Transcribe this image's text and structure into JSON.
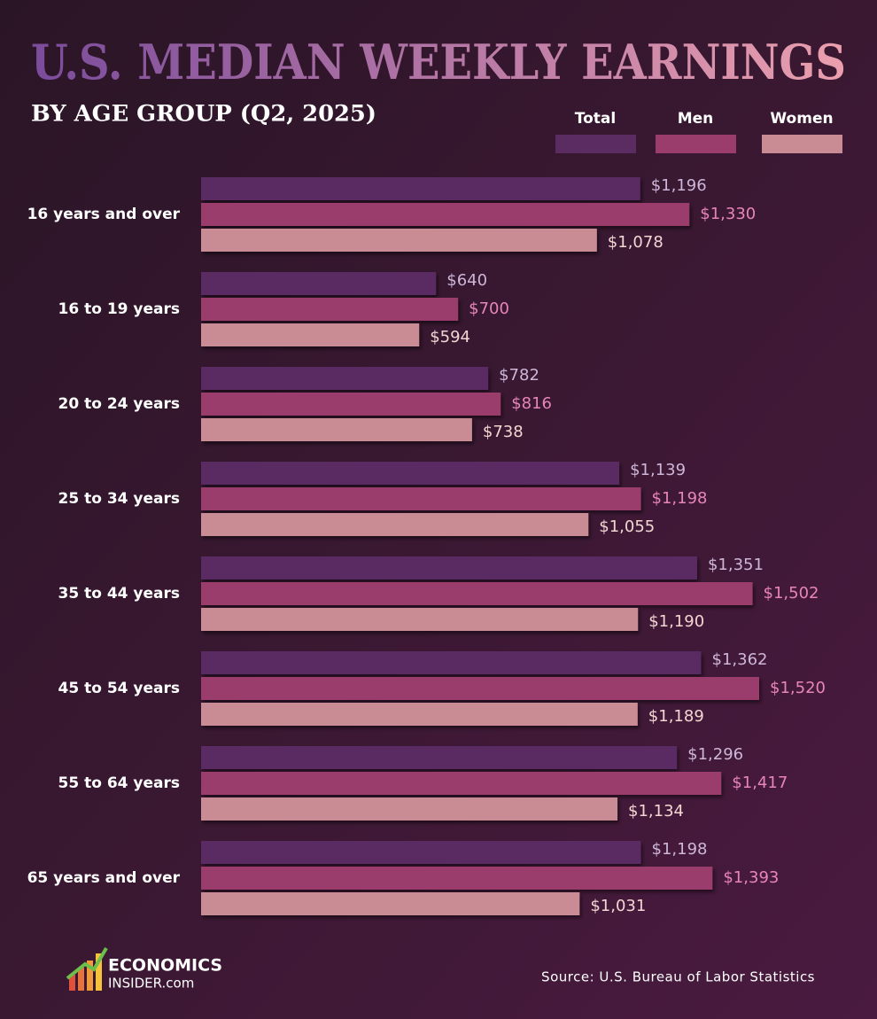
{
  "chart_data": {
    "type": "bar",
    "orientation": "horizontal",
    "title": "U.S. MEDIAN WEEKLY EARNINGS",
    "subtitle": "BY AGE GROUP (Q2, 2025)",
    "categories": [
      "16 years and over",
      "16 to 19 years",
      "20 to 24 years",
      "25 to 34 years",
      "35 to 44 years",
      "45 to 54 years",
      "55 to 64 years",
      "65 years and over"
    ],
    "series": [
      {
        "name": "Total",
        "color": "#5a2c62",
        "label_color": "#cdb6d8",
        "values": [
          1196,
          640,
          782,
          1139,
          1351,
          1362,
          1296,
          1198
        ],
        "value_labels": [
          "$1,196",
          "$640",
          "$782",
          "$1,139",
          "$1,351",
          "$1,362",
          "$1,296",
          "$1,198"
        ]
      },
      {
        "name": "Men",
        "color": "#9a3d6c",
        "label_color": "#e785b8",
        "values": [
          1330,
          700,
          816,
          1198,
          1502,
          1520,
          1417,
          1393
        ],
        "value_labels": [
          "$1,330",
          "$700",
          "$816",
          "$1,198",
          "$1,502",
          "$1,520",
          "$1,417",
          "$1,393"
        ]
      },
      {
        "name": "Women",
        "color": "#c98b94",
        "label_color": "#f2d6d2",
        "values": [
          1078,
          594,
          738,
          1055,
          1190,
          1189,
          1134,
          1031
        ],
        "value_labels": [
          "$1,078",
          "$594",
          "$738",
          "$1,055",
          "$1,190",
          "$1,189",
          "$1,134",
          "$1,031"
        ]
      }
    ],
    "source": "Source: U.S. Bureau of Labor Statistics",
    "brand": {
      "line1": "ECONOMICS",
      "line2": "INSIDER.com"
    }
  }
}
